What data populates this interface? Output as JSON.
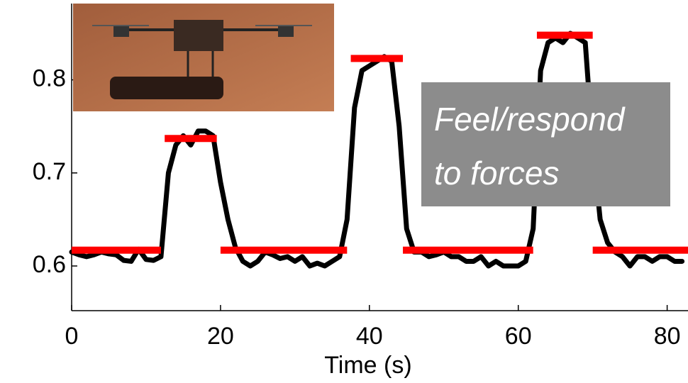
{
  "chart_data": {
    "type": "line",
    "x_label": "Time (s)",
    "xlim": [
      0,
      82.8
    ],
    "ylim": [
      0.552,
      0.882
    ],
    "xticks": [
      0,
      20,
      40,
      60,
      80
    ],
    "yticks": [
      0.6,
      0.7,
      0.8
    ],
    "series": [
      {
        "color": "#000000",
        "x": [
          0,
          1,
          2,
          3,
          4,
          5,
          6,
          7,
          8,
          9,
          10,
          11,
          12,
          13,
          14,
          15,
          16,
          17,
          18,
          19,
          20,
          21,
          22,
          23,
          24,
          25,
          26,
          27,
          28,
          29,
          30,
          31,
          32,
          33,
          34,
          35,
          36,
          37,
          38,
          39,
          40,
          41,
          42,
          43,
          44,
          45,
          46,
          47,
          48,
          49,
          50,
          51,
          52,
          53,
          54,
          55,
          56,
          57,
          58,
          59,
          60,
          61,
          62,
          63,
          64,
          65,
          66,
          67,
          68,
          69,
          70,
          71,
          72,
          73,
          74,
          75,
          76,
          77,
          78,
          79,
          80,
          81,
          82
        ],
        "values": [
          0.615,
          0.612,
          0.61,
          0.612,
          0.615,
          0.613,
          0.612,
          0.606,
          0.605,
          0.618,
          0.607,
          0.606,
          0.61,
          0.7,
          0.73,
          0.74,
          0.73,
          0.745,
          0.745,
          0.74,
          0.69,
          0.65,
          0.62,
          0.605,
          0.6,
          0.605,
          0.615,
          0.612,
          0.608,
          0.61,
          0.605,
          0.61,
          0.6,
          0.603,
          0.6,
          0.605,
          0.61,
          0.65,
          0.77,
          0.81,
          0.815,
          0.82,
          0.825,
          0.82,
          0.75,
          0.64,
          0.615,
          0.615,
          0.61,
          0.612,
          0.615,
          0.61,
          0.61,
          0.605,
          0.605,
          0.61,
          0.6,
          0.605,
          0.6,
          0.6,
          0.6,
          0.605,
          0.64,
          0.81,
          0.84,
          0.845,
          0.84,
          0.85,
          0.845,
          0.84,
          0.73,
          0.65,
          0.625,
          0.615,
          0.61,
          0.6,
          0.61,
          0.61,
          0.605,
          0.61,
          0.61,
          0.605,
          0.605
        ]
      }
    ],
    "steps": {
      "color": "#ff0000",
      "segments": [
        {
          "x": [
            0,
            12
          ],
          "value": 0.617
        },
        {
          "x": [
            12.5,
            19.5
          ],
          "value": 0.737
        },
        {
          "x": [
            20,
            37
          ],
          "value": 0.617
        },
        {
          "x": [
            37.5,
            44.5
          ],
          "value": 0.823
        },
        {
          "x": [
            44.5,
            62
          ],
          "value": 0.617
        },
        {
          "x": [
            62.5,
            70
          ],
          "value": 0.848
        },
        {
          "x": [
            70,
            82.8
          ],
          "value": 0.617
        }
      ]
    },
    "annotation": {
      "lines": [
        "Feel/respond",
        "to forces"
      ],
      "color": "#8c8c8c"
    }
  }
}
